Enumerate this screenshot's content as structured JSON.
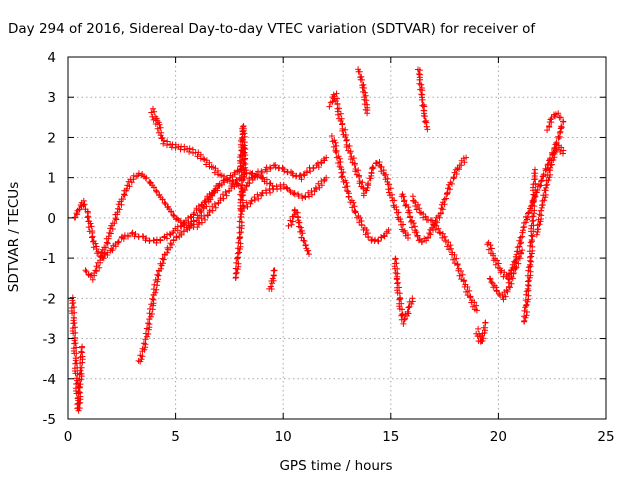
{
  "chart_data": {
    "type": "scatter",
    "title": "Day 294 of 2016, Sidereal Day-to-day VTEC variation (SDTVAR) for receiver of",
    "xlabel": "GPS time / hours",
    "ylabel": "SDTVAR / TECUs",
    "xlim": [
      0,
      25
    ],
    "ylim": [
      -5,
      4
    ],
    "xticks": [
      "0",
      "5",
      "10",
      "15",
      "20",
      "25"
    ],
    "yticks": [
      "-5",
      "-4",
      "-3",
      "-2",
      "-1",
      "0",
      "1",
      "2",
      "3",
      "4"
    ],
    "grid": true,
    "marker": "+",
    "color": "#ff0000",
    "series": [
      {
        "name": "",
        "x": [
          0.2,
          0.25,
          0.3,
          0.35,
          0.4,
          0.45,
          0.5,
          0.55,
          0.6,
          0.65
        ],
        "y": [
          -2.0,
          -2.5,
          -3.0,
          -3.5,
          -4.0,
          -4.5,
          -4.8,
          -4.2,
          -3.8,
          -3.2
        ]
      },
      {
        "name": "",
        "x": [
          0.3,
          0.5,
          0.7,
          0.9,
          1.1,
          1.3,
          1.6,
          2.0,
          2.5,
          3.0,
          3.5,
          4.0,
          4.5,
          5.0,
          5.5,
          6.0,
          6.5,
          7.0
        ],
        "y": [
          0.0,
          0.2,
          0.4,
          0.1,
          -0.4,
          -0.8,
          -1.0,
          -0.8,
          -0.5,
          -0.4,
          -0.5,
          -0.6,
          -0.5,
          -0.3,
          -0.1,
          0.2,
          0.5,
          0.8
        ]
      },
      {
        "name": "",
        "x": [
          0.8,
          1.1,
          1.4,
          1.8,
          2.2,
          2.6,
          3.0,
          3.4,
          3.8,
          4.2,
          4.6,
          5.0,
          5.5,
          6.0,
          6.5,
          7.0,
          7.5,
          8.0
        ],
        "y": [
          -1.3,
          -1.5,
          -1.2,
          -0.6,
          0.0,
          0.6,
          1.0,
          1.1,
          0.9,
          0.6,
          0.3,
          0.0,
          -0.2,
          -0.2,
          0.1,
          0.4,
          0.7,
          1.0
        ]
      },
      {
        "name": "",
        "x": [
          3.3,
          3.5,
          3.7,
          3.9,
          4.1,
          4.3,
          4.6,
          5.0,
          5.5,
          6.0,
          6.5,
          7.0,
          7.5,
          8.0,
          8.5,
          9.0,
          9.5
        ],
        "y": [
          -3.6,
          -3.3,
          -2.8,
          -2.2,
          -1.6,
          -1.2,
          -0.8,
          -0.5,
          -0.3,
          0.0,
          0.4,
          0.8,
          1.0,
          1.2,
          1.1,
          1.0,
          0.8
        ]
      },
      {
        "name": "",
        "x": [
          3.9,
          4.0,
          4.1,
          4.2,
          4.4,
          4.8,
          5.2,
          5.6,
          6.0,
          6.4,
          6.8,
          7.2,
          7.6,
          8.0
        ],
        "y": [
          2.7,
          2.5,
          2.4,
          2.3,
          1.9,
          1.8,
          1.75,
          1.7,
          1.6,
          1.4,
          1.2,
          1.0,
          0.9,
          0.8
        ]
      },
      {
        "name": "",
        "x": [
          8.0,
          8.4,
          8.8,
          9.2,
          9.6,
          10.0,
          10.4,
          10.8,
          11.2,
          11.6,
          12.0
        ],
        "y": [
          0.5,
          0.9,
          1.1,
          1.2,
          1.3,
          1.2,
          1.1,
          1.0,
          1.2,
          1.3,
          1.5
        ]
      },
      {
        "name": "",
        "x": [
          8.0,
          8.5,
          9.0,
          9.5,
          10.0,
          10.5,
          11.0,
          11.5,
          12.0
        ],
        "y": [
          0.2,
          0.4,
          0.6,
          0.7,
          0.8,
          0.6,
          0.5,
          0.7,
          1.0
        ]
      },
      {
        "name": "",
        "x": [
          7.8,
          7.9,
          8.0,
          8.1,
          8.2
        ],
        "y": [
          -1.5,
          -1.0,
          -0.5,
          0.8,
          1.8
        ]
      },
      {
        "name": "",
        "x": [
          8.0,
          8.05,
          8.1,
          8.15,
          8.2
        ],
        "y": [
          1.2,
          1.6,
          2.0,
          2.3,
          1.0
        ]
      },
      {
        "name": "",
        "x": [
          9.4,
          9.5,
          9.6
        ],
        "y": [
          -1.8,
          -1.6,
          -1.3
        ]
      },
      {
        "name": "",
        "x": [
          10.3,
          10.6,
          10.9,
          11.2
        ],
        "y": [
          -0.2,
          0.2,
          -0.5,
          -0.9
        ]
      },
      {
        "name": "",
        "x": [
          12.2,
          12.4,
          12.6,
          12.8,
          13.0,
          13.2,
          13.4,
          13.6,
          13.8,
          14.0,
          14.2,
          14.4,
          14.6,
          14.8,
          15.0,
          15.2,
          15.4,
          15.6,
          15.8
        ],
        "y": [
          2.8,
          3.1,
          2.6,
          2.2,
          1.8,
          1.5,
          1.2,
          0.9,
          0.6,
          0.9,
          1.3,
          1.4,
          1.2,
          1.0,
          0.6,
          0.3,
          0.0,
          -0.3,
          -0.5
        ]
      },
      {
        "name": "",
        "x": [
          12.3,
          12.5,
          12.8,
          13.1,
          13.4,
          13.7,
          14.0,
          14.3,
          14.6,
          14.9
        ],
        "y": [
          2.0,
          1.6,
          1.0,
          0.5,
          0.1,
          -0.2,
          -0.5,
          -0.6,
          -0.5,
          -0.3
        ]
      },
      {
        "name": "",
        "x": [
          13.5,
          13.6,
          13.7,
          13.8,
          13.9
        ],
        "y": [
          3.7,
          3.5,
          3.3,
          3.0,
          2.6
        ]
      },
      {
        "name": "",
        "x": [
          15.2,
          15.3,
          15.4,
          15.5,
          15.6,
          15.8,
          16.0
        ],
        "y": [
          -1.0,
          -1.6,
          -2.0,
          -2.4,
          -2.6,
          -2.3,
          -2.0
        ]
      },
      {
        "name": "",
        "x": [
          16.0,
          16.3,
          16.6,
          16.9,
          17.2,
          17.5,
          17.8,
          18.1,
          18.4,
          18.7,
          19.0
        ],
        "y": [
          0.5,
          0.2,
          0.0,
          -0.1,
          -0.3,
          -0.5,
          -0.8,
          -1.2,
          -1.6,
          -2.0,
          -2.3
        ]
      },
      {
        "name": "",
        "x": [
          15.5,
          15.8,
          16.1,
          16.4,
          16.7,
          17.0,
          17.3,
          17.6,
          17.9,
          18.2,
          18.5
        ],
        "y": [
          0.6,
          0.2,
          -0.3,
          -0.6,
          -0.5,
          -0.2,
          0.1,
          0.6,
          1.0,
          1.3,
          1.5
        ]
      },
      {
        "name": "",
        "x": [
          16.3,
          16.4,
          16.5,
          16.6,
          16.7
        ],
        "y": [
          3.7,
          3.2,
          2.8,
          2.4,
          2.2
        ]
      },
      {
        "name": "",
        "x": [
          19.0,
          19.1,
          19.2,
          19.3,
          19.4
        ],
        "y": [
          -2.8,
          -3.0,
          -3.1,
          -2.9,
          -2.6
        ]
      },
      {
        "name": "",
        "x": [
          19.5,
          19.8,
          20.1,
          20.4,
          20.7,
          21.0,
          21.3,
          21.6,
          21.9,
          22.2,
          22.5,
          22.8,
          23.0
        ],
        "y": [
          -0.6,
          -1.0,
          -1.3,
          -1.5,
          -1.2,
          -0.6,
          0.0,
          0.4,
          0.8,
          1.2,
          1.6,
          2.0,
          2.4
        ]
      },
      {
        "name": "",
        "x": [
          19.6,
          19.9,
          20.2,
          20.5,
          20.8,
          21.1
        ],
        "y": [
          -1.5,
          -1.8,
          -2.0,
          -1.7,
          -1.2,
          -0.8
        ]
      },
      {
        "name": "",
        "x": [
          21.2,
          21.3,
          21.4,
          21.5,
          21.6,
          21.7
        ],
        "y": [
          -2.6,
          -2.2,
          -1.6,
          -1.0,
          0.0,
          1.2
        ]
      },
      {
        "name": "",
        "x": [
          21.8,
          22.0,
          22.2,
          22.4,
          22.6,
          22.8,
          23.0
        ],
        "y": [
          -0.4,
          0.2,
          0.7,
          1.2,
          1.6,
          1.8,
          1.6
        ]
      },
      {
        "name": "",
        "x": [
          22.3,
          22.5,
          22.7,
          22.9
        ],
        "y": [
          2.2,
          2.5,
          2.6,
          2.5
        ]
      }
    ]
  }
}
